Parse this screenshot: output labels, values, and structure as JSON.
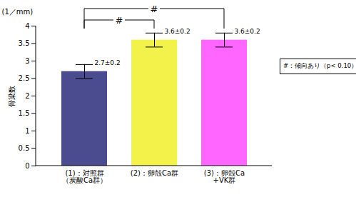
{
  "chart_data": {
    "type": "bar",
    "y_label": "骨梁数",
    "y_unit": "(1／mm)",
    "categories": [
      "(1)：対照群\n（炭酸Ca群）",
      "(2)：卵殻Ca群",
      "(3)：卵殻Ca\n+VK群"
    ],
    "values": [
      2.7,
      3.6,
      3.6
    ],
    "errors": [
      0.2,
      0.2,
      0.2
    ],
    "value_labels": [
      "2.7±0.2",
      "3.6±0.2",
      "3.6±0.2"
    ],
    "data_labels": true,
    "colors": [
      "#4b4b8f",
      "#f2f24a",
      "#ff66ff"
    ],
    "ylim": [
      0,
      4
    ],
    "yticks": [
      0,
      0.5,
      1,
      1.5,
      2,
      2.5,
      3,
      3.5,
      4
    ],
    "grid": false,
    "comparisons": [
      {
        "pair": [
          0,
          1
        ],
        "label": "#"
      },
      {
        "pair": [
          0,
          2
        ],
        "label": "#"
      }
    ],
    "note": "#：傾向あり（p< 0.10）"
  }
}
